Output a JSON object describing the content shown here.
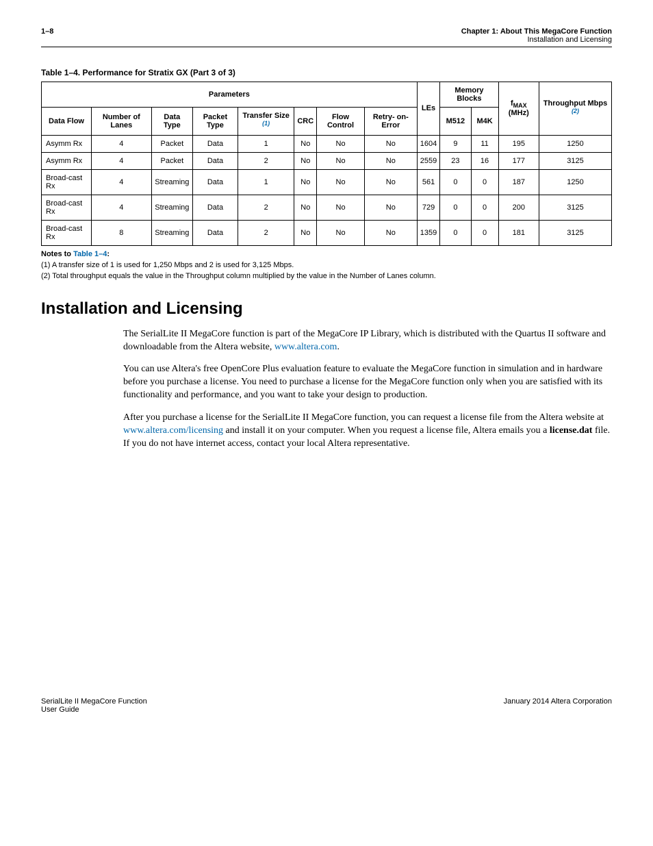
{
  "header": {
    "page_num": "1–8",
    "chapter": "Chapter 1:  About This MegaCore Function",
    "subsection": "Installation and Licensing"
  },
  "table": {
    "caption": "Table 1–4.  Performance for Stratix GX  (Part 3 of 3)",
    "group_headers": {
      "parameters": "Parameters",
      "memory_blocks": "Memory Blocks",
      "throughput": "Throughput Mbps",
      "throughput_fn": "(2)"
    },
    "col_headers": {
      "data_flow": "Data Flow",
      "num_lanes": "Number of Lanes",
      "data_type": "Data Type",
      "packet_type": "Packet Type",
      "transfer_size": "Transfer Size",
      "transfer_size_fn": "(1)",
      "crc": "CRC",
      "flow_control": "Flow Control",
      "retry": "Retry- on-Error",
      "les": "LEs",
      "m512": "M512",
      "m4k": "M4K",
      "fmax": "fMAX (MHz)"
    },
    "rows": [
      {
        "flow": "Asymm Rx",
        "lanes": "4",
        "dtype": "Packet",
        "ptype": "Data",
        "tsize": "1",
        "crc": "No",
        "fc": "No",
        "retry": "No",
        "les": "1604",
        "m512": "9",
        "m4k": "11",
        "fmax": "195",
        "tput": "1250"
      },
      {
        "flow": "Asymm Rx",
        "lanes": "4",
        "dtype": "Packet",
        "ptype": "Data",
        "tsize": "2",
        "crc": "No",
        "fc": "No",
        "retry": "No",
        "les": "2559",
        "m512": "23",
        "m4k": "16",
        "fmax": "177",
        "tput": "3125"
      },
      {
        "flow": "Broad-cast Rx",
        "lanes": "4",
        "dtype": "Streaming",
        "ptype": "Data",
        "tsize": "1",
        "crc": "No",
        "fc": "No",
        "retry": "No",
        "les": "561",
        "m512": "0",
        "m4k": "0",
        "fmax": "187",
        "tput": "1250"
      },
      {
        "flow": "Broad-cast Rx",
        "lanes": "4",
        "dtype": "Streaming",
        "ptype": "Data",
        "tsize": "2",
        "crc": "No",
        "fc": "No",
        "retry": "No",
        "les": "729",
        "m512": "0",
        "m4k": "0",
        "fmax": "200",
        "tput": "3125"
      },
      {
        "flow": "Broad-cast Rx",
        "lanes": "8",
        "dtype": "Streaming",
        "ptype": "Data",
        "tsize": "2",
        "crc": "No",
        "fc": "No",
        "retry": "No",
        "les": "1359",
        "m512": "0",
        "m4k": "0",
        "fmax": "181",
        "tput": "3125"
      }
    ],
    "notes_head_prefix": "Notes to ",
    "notes_head_ref": "Table 1–4",
    "notes_head_suffix": ":",
    "notes": [
      "(1)   A transfer size of 1 is used for 1,250 Mbps and 2 is used for 3,125 Mbps.",
      "(2)   Total throughput equals the value in the Throughput column multiplied by the value in the Number of Lanes column."
    ]
  },
  "section": {
    "title": "Installation and Licensing",
    "p1a": "The SerialLite II MegaCore function is part of the MegaCore IP Library, which is distributed with the Quartus II software and downloadable from the Altera website, ",
    "p1_link": "www.altera.com",
    "p1b": ".",
    "p2": "You can use Altera's free OpenCore Plus evaluation feature to evaluate the MegaCore function in simulation and in hardware before you purchase a license. You need to purchase a license for the MegaCore function only when you are satisfied with its functionality and performance, and you want to take your design to production.",
    "p3a": "After you purchase a license for the SerialLite II MegaCore function, you can request a license file from the Altera website at ",
    "p3_link": "www.altera.com/licensing",
    "p3b": " and install it on your computer. When you request a license file, Altera emails you a ",
    "p3_bold": "license.dat",
    "p3c": " file. If you do not have internet access, contact your local Altera representative."
  },
  "footer": {
    "left1": "SerialLite II MegaCore Function",
    "left2": "User Guide",
    "right": "January 2014   Altera Corporation"
  }
}
